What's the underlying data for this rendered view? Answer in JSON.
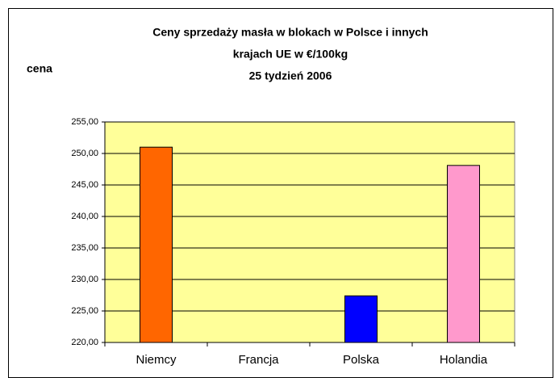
{
  "chart_data": {
    "type": "bar",
    "title": [
      "Ceny sprzedaży masła w blokach w Polsce i  innych",
      "krajach UE w €/100kg",
      "25 tydzień 2006"
    ],
    "y_label": "cena",
    "categories": [
      "Niemcy",
      "Francja",
      "Polska",
      "Holandia"
    ],
    "values": [
      251.0,
      null,
      227.4,
      248.1
    ],
    "colors": [
      "#ff6600",
      null,
      "#0000ff",
      "#ff99cc"
    ],
    "plot_background": "#ffff99",
    "ylim": [
      220,
      255
    ],
    "yticks": [
      {
        "value": 220,
        "label": "220,00"
      },
      {
        "value": 225,
        "label": "225,00"
      },
      {
        "value": 230,
        "label": "230,00"
      },
      {
        "value": 235,
        "label": "235,00"
      },
      {
        "value": 240,
        "label": "240,00"
      },
      {
        "value": 245,
        "label": "245,00"
      },
      {
        "value": 250,
        "label": "250,00"
      },
      {
        "value": 255,
        "label": "255,00"
      }
    ],
    "grid": true
  }
}
